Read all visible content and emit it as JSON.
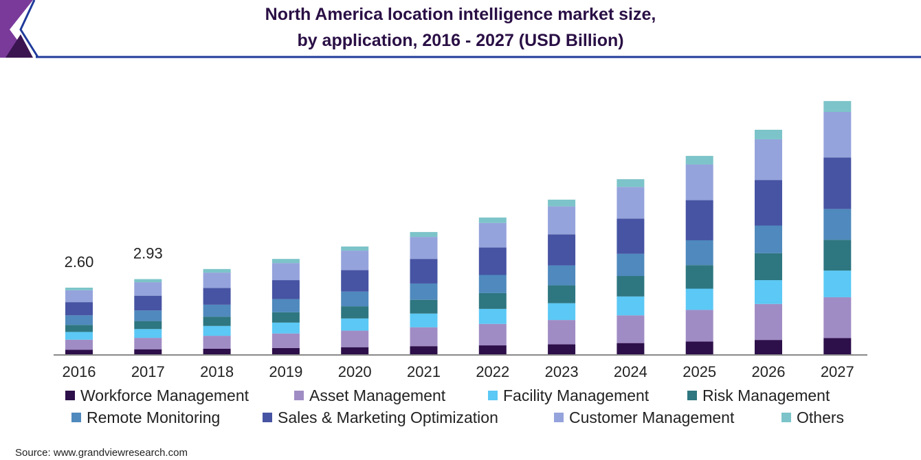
{
  "chart_data": {
    "type": "bar",
    "stacked": true,
    "title": "North America location intelligence market size,",
    "title_line2": "by application, 2016 - 2027 (USD Billion)",
    "xlabel": "",
    "ylabel": "",
    "ylim": [
      0,
      10
    ],
    "grid": false,
    "legend_position": "bottom",
    "categories": [
      "2016",
      "2017",
      "2018",
      "2019",
      "2020",
      "2021",
      "2022",
      "2023",
      "2024",
      "2025",
      "2026",
      "2027"
    ],
    "annotations": [
      {
        "category": "2016",
        "text": "2.60"
      },
      {
        "category": "2017",
        "text": "2.93"
      }
    ],
    "series": [
      {
        "name": "Workforce Management",
        "color": "#2d0f4a",
        "values": [
          0.2,
          0.22,
          0.24,
          0.27,
          0.3,
          0.34,
          0.37,
          0.41,
          0.46,
          0.52,
          0.58,
          0.65
        ]
      },
      {
        "name": "Asset Management",
        "color": "#a08cc4",
        "values": [
          0.39,
          0.44,
          0.5,
          0.56,
          0.64,
          0.73,
          0.83,
          0.94,
          1.07,
          1.22,
          1.39,
          1.58
        ]
      },
      {
        "name": "Facility Management",
        "color": "#5bc8f5",
        "values": [
          0.3,
          0.34,
          0.38,
          0.42,
          0.47,
          0.53,
          0.58,
          0.65,
          0.73,
          0.82,
          0.92,
          1.03
        ]
      },
      {
        "name": "Risk Management",
        "color": "#2e7680",
        "values": [
          0.27,
          0.31,
          0.36,
          0.4,
          0.47,
          0.53,
          0.61,
          0.69,
          0.79,
          0.91,
          1.04,
          1.19
        ]
      },
      {
        "name": "Remote Monitoring",
        "color": "#4f89bd",
        "values": [
          0.37,
          0.41,
          0.46,
          0.51,
          0.57,
          0.63,
          0.7,
          0.77,
          0.86,
          0.96,
          1.07,
          1.19
        ]
      },
      {
        "name": "Sales & Marketing Optimization",
        "color": "#4754a3",
        "values": [
          0.51,
          0.57,
          0.65,
          0.73,
          0.83,
          0.95,
          1.06,
          1.2,
          1.36,
          1.55,
          1.76,
          1.99
        ]
      },
      {
        "name": "Customer Management",
        "color": "#95a3dc",
        "values": [
          0.46,
          0.52,
          0.59,
          0.66,
          0.75,
          0.85,
          0.95,
          1.08,
          1.22,
          1.38,
          1.57,
          1.76
        ]
      },
      {
        "name": "Others",
        "color": "#7cc4c9",
        "values": [
          0.1,
          0.12,
          0.14,
          0.16,
          0.16,
          0.19,
          0.21,
          0.26,
          0.3,
          0.33,
          0.37,
          0.42
        ]
      }
    ],
    "source": "Source: www.grandviewresearch.com"
  }
}
